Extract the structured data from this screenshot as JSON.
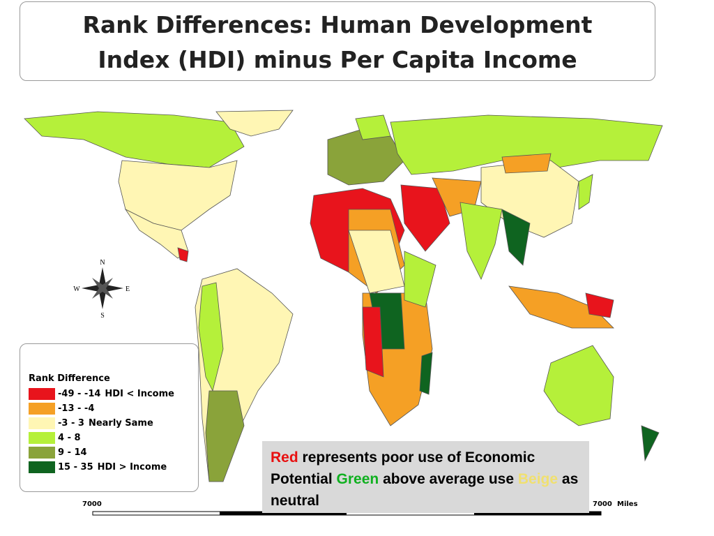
{
  "title": {
    "lines": [
      "Rank Differences: Human Development",
      "Index (HDI) minus Per Capita Income"
    ]
  },
  "compass": {
    "n": "N",
    "s": "S",
    "e": "E",
    "w": "W"
  },
  "legend": {
    "title": "Rank Difference",
    "items": [
      {
        "range": "-49 - -14",
        "note": "HDI < Income",
        "color": "#e8141c"
      },
      {
        "range": "-13 - -4",
        "note": null,
        "color": "#f5a025"
      },
      {
        "range": "-3 - 3",
        "note": "Nearly Same",
        "color": "#fff6b4"
      },
      {
        "range": "4 - 8",
        "note": null,
        "color": "#b5f03a"
      },
      {
        "range": "9 - 14",
        "note": null,
        "color": "#8aa33a"
      },
      {
        "range": "15 - 35",
        "note": "HDI > Income",
        "color": "#0f6420"
      }
    ]
  },
  "note": {
    "parts": [
      {
        "text": "Red",
        "color": "#e81010"
      },
      {
        "text": "represents poor use of Economic Potential",
        "color": "#000000"
      },
      {
        "text": "Green",
        "color": "#10b020"
      },
      {
        "text": "above average use",
        "color": "#000000"
      },
      {
        "text": "Beige",
        "color": "#f0e070"
      },
      {
        "text": "as neutral",
        "color": "#000000"
      }
    ]
  },
  "scale": {
    "left": "7000",
    "right": "7000",
    "unit": "Miles"
  }
}
